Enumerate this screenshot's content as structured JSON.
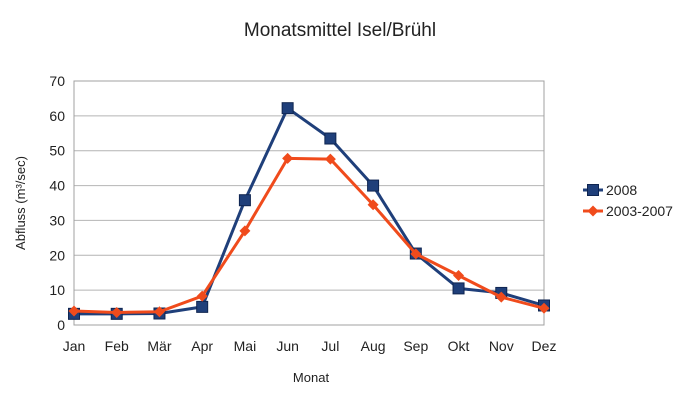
{
  "chart_data": {
    "type": "line",
    "title": "Monatsmittel Isel/Brühl",
    "xlabel": "Monat",
    "ylabel": "Abfluss (m³/sec)",
    "categories": [
      "Jan",
      "Feb",
      "Mär",
      "Apr",
      "Mai",
      "Jun",
      "Jul",
      "Aug",
      "Sep",
      "Okt",
      "Nov",
      "Dez"
    ],
    "ylim": [
      0,
      70
    ],
    "yticks": [
      0,
      10,
      20,
      30,
      40,
      50,
      60,
      70
    ],
    "grid": true,
    "legend_position": "right",
    "series": [
      {
        "name": "2008",
        "color": "#1f3f7a",
        "marker": "square",
        "values": [
          3.2,
          3.2,
          3.3,
          5.2,
          35.8,
          62.2,
          53.5,
          40.0,
          20.5,
          10.5,
          9.2,
          5.6
        ]
      },
      {
        "name": "2003-2007",
        "color": "#f04b1c",
        "marker": "diamond",
        "values": [
          4.0,
          3.6,
          3.8,
          8.3,
          27.0,
          47.8,
          47.6,
          34.5,
          20.4,
          14.2,
          8.0,
          4.8
        ]
      }
    ]
  }
}
